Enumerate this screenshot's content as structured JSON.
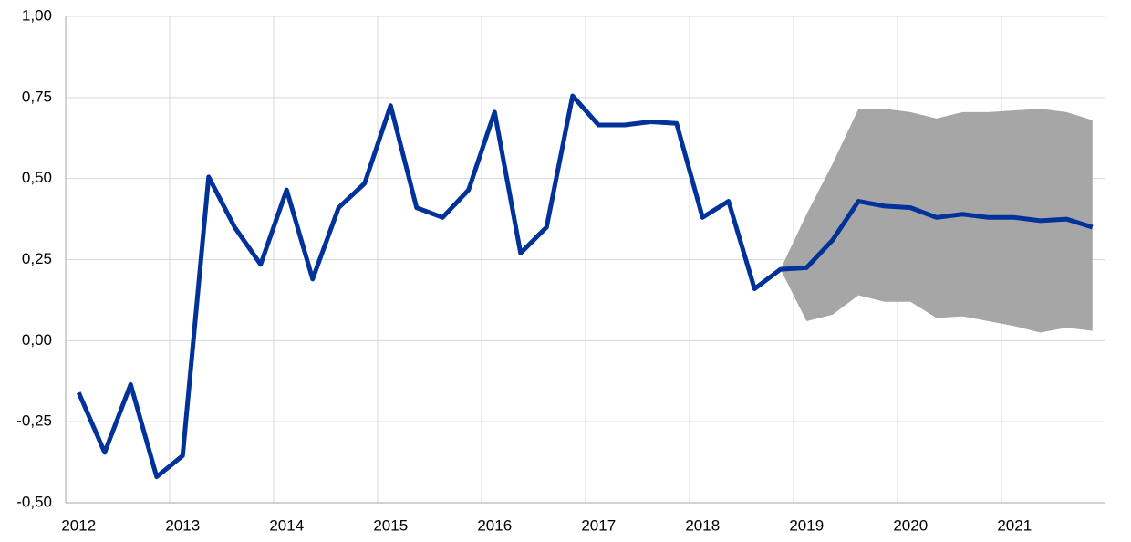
{
  "chart_data": {
    "type": "line",
    "categories": [
      "2012",
      null,
      null,
      null,
      "2013",
      null,
      null,
      null,
      "2014",
      null,
      null,
      null,
      "2015",
      null,
      null,
      null,
      "2016",
      null,
      null,
      null,
      "2017",
      null,
      null,
      null,
      "2018",
      null,
      null,
      null,
      "2019",
      null,
      null,
      null,
      "2020",
      null,
      null,
      null,
      "2021",
      null,
      null,
      null
    ],
    "values": [
      -0.16,
      -0.345,
      -0.135,
      -0.42,
      -0.355,
      0.505,
      0.35,
      0.235,
      0.465,
      0.19,
      0.41,
      0.485,
      0.725,
      0.41,
      0.38,
      0.465,
      0.705,
      0.27,
      0.35,
      0.755,
      0.665,
      0.665,
      0.675,
      0.67,
      0.38,
      0.43,
      0.16,
      0.22,
      0.225,
      0.31,
      0.43,
      0.415,
      0.41,
      0.38,
      0.39,
      0.38,
      0.38,
      0.37,
      0.375,
      0.35
    ],
    "color": "#003299",
    "band_upper": [
      null,
      null,
      null,
      null,
      null,
      null,
      null,
      null,
      null,
      null,
      null,
      null,
      null,
      null,
      null,
      null,
      null,
      null,
      null,
      null,
      null,
      null,
      null,
      null,
      null,
      null,
      null,
      0.22,
      0.39,
      0.545,
      0.715,
      0.715,
      0.705,
      0.685,
      0.705,
      0.705,
      0.71,
      0.715,
      0.705,
      0.68
    ],
    "band_lower": [
      null,
      null,
      null,
      null,
      null,
      null,
      null,
      null,
      null,
      null,
      null,
      null,
      null,
      null,
      null,
      null,
      null,
      null,
      null,
      null,
      null,
      null,
      null,
      null,
      null,
      null,
      null,
      0.22,
      0.06,
      0.08,
      0.14,
      0.12,
      0.12,
      0.07,
      0.075,
      0.06,
      0.045,
      0.025,
      0.04,
      0.03
    ],
    "band_color": "#a6a6a6",
    "ylim": [
      -0.5,
      1.0
    ],
    "yticks": [
      {
        "value": -0.5,
        "label": "-0,50"
      },
      {
        "value": -0.25,
        "label": "-0,25"
      },
      {
        "value": 0,
        "label": "0,00"
      },
      {
        "value": 0.25,
        "label": "0,25"
      },
      {
        "value": 0.5,
        "label": "0,50"
      },
      {
        "value": 0.75,
        "label": "0,75"
      },
      {
        "value": 1.0,
        "label": "1,00"
      }
    ],
    "grid": true
  }
}
